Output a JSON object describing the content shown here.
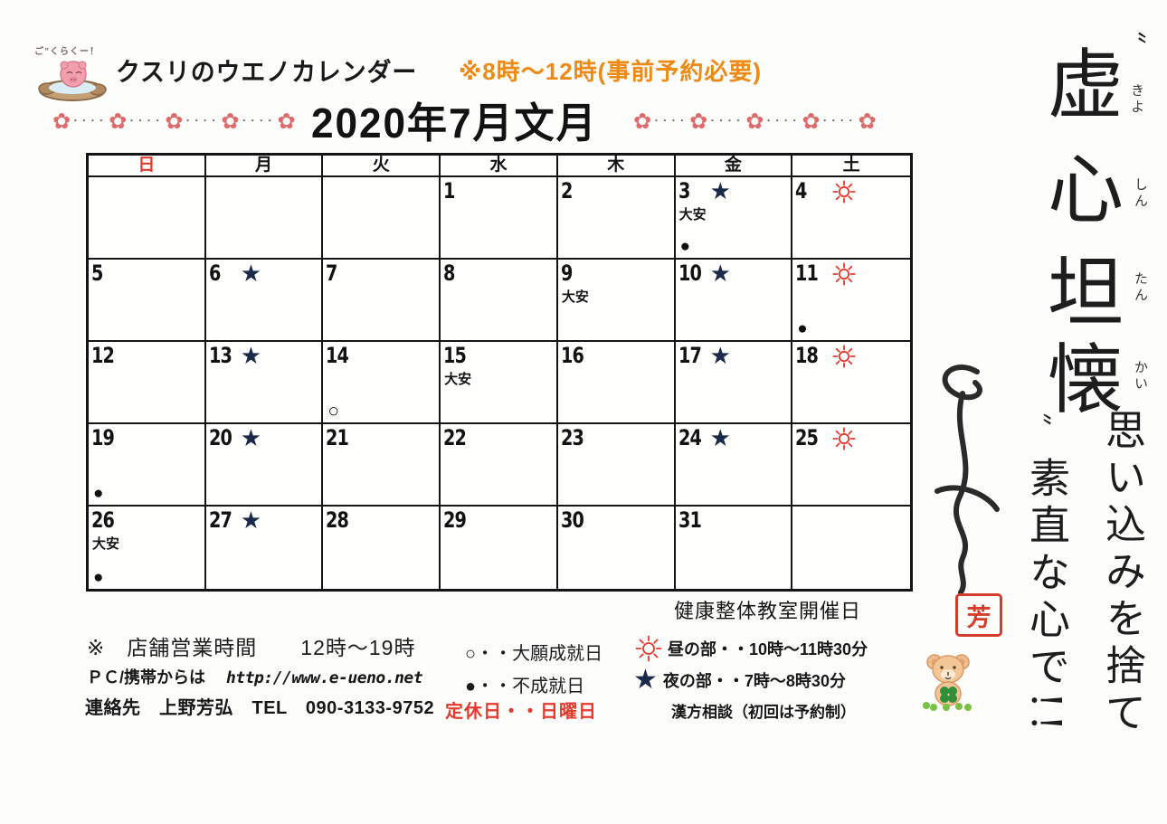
{
  "header": {
    "mascot_speech": "ご”くらくー！",
    "title": "クスリのウエノカレンダー",
    "note": "※8時～12時(事前予約必要)",
    "month_title": "2020年7月文月"
  },
  "weekday_headers": [
    {
      "label": "日",
      "color": "#e23b2e"
    },
    {
      "label": "月",
      "color": "#141414"
    },
    {
      "label": "火",
      "color": "#141414"
    },
    {
      "label": "水",
      "color": "#141414"
    },
    {
      "label": "木",
      "color": "#141414"
    },
    {
      "label": "金",
      "color": "#141414"
    },
    {
      "label": "土",
      "color": "#141414"
    }
  ],
  "taian_label": "大安",
  "calendar_cells": [
    {
      "day": ""
    },
    {
      "day": ""
    },
    {
      "day": ""
    },
    {
      "day": "1"
    },
    {
      "day": "2"
    },
    {
      "day": "3",
      "star": true,
      "taian": true,
      "circle": "filled"
    },
    {
      "day": "4",
      "sun": true
    },
    {
      "day": "5"
    },
    {
      "day": "6",
      "star": true
    },
    {
      "day": "7"
    },
    {
      "day": "8"
    },
    {
      "day": "9",
      "taian": true
    },
    {
      "day": "10",
      "star": true
    },
    {
      "day": "11",
      "sun": true,
      "circle": "filled"
    },
    {
      "day": "12"
    },
    {
      "day": "13",
      "star": true
    },
    {
      "day": "14",
      "circle": "open"
    },
    {
      "day": "15",
      "taian": true
    },
    {
      "day": "16"
    },
    {
      "day": "17",
      "star": true
    },
    {
      "day": "18",
      "sun": true
    },
    {
      "day": "19",
      "circle": "filled"
    },
    {
      "day": "20",
      "star": true
    },
    {
      "day": "21"
    },
    {
      "day": "22"
    },
    {
      "day": "23"
    },
    {
      "day": "24",
      "star": true
    },
    {
      "day": "25",
      "sun": true
    },
    {
      "day": "26",
      "taian": true,
      "circle": "filled"
    },
    {
      "day": "27",
      "star": true
    },
    {
      "day": "28"
    },
    {
      "day": "29"
    },
    {
      "day": "30"
    },
    {
      "day": "31"
    },
    {
      "day": ""
    }
  ],
  "legend": {
    "store_hours": "※　店舗営業時間　　12時～19時",
    "web_label": "ＰＣ/携帯からは",
    "web_url": "http://www.e-ueno.net",
    "contact": "連絡先　上野芳弘　TEL　090-3133-9752",
    "closed": "定休日・・日曜日",
    "open_circle": "○・・大願成就日",
    "filled_circle": "●・・不成就日",
    "class_header": "健康整体教室開催日",
    "day_session": "昼の部・・10時～11時30分",
    "night_session": "夜の部・・7時～8時30分",
    "kampo": "漢方相談（初回は予約制）"
  },
  "calligraphy": {
    "open_quote": "〝",
    "close_quote": "〟",
    "main_chars": [
      {
        "char": "虚",
        "furigana": "きよ"
      },
      {
        "char": "心",
        "furigana": "しん"
      },
      {
        "char": "坦",
        "furigana": "たん"
      },
      {
        "char": "懐",
        "furigana": "かい"
      }
    ],
    "message_line1": "思い込みを捨て",
    "message_line2": "素直な心で!!",
    "seal_char": "芳"
  },
  "colors": {
    "sunday_red": "#e23b2e",
    "star_navy": "#1b2a4a",
    "sun_red": "#e23b2e",
    "note_orange": "#ec8a15",
    "seal_red": "#d63c2a",
    "flower_pink": "#dd6b6b"
  }
}
